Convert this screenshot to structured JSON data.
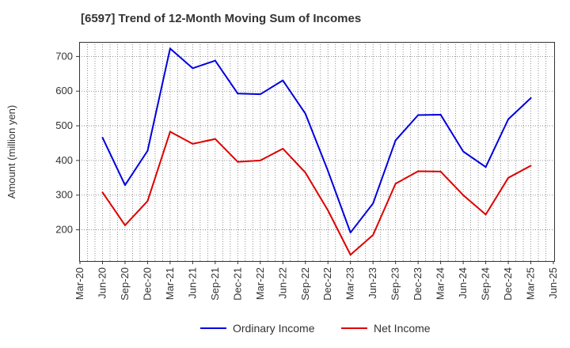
{
  "chart_data": {
    "type": "line",
    "title": "[6597]  Trend of 12-Month Moving Sum of Incomes",
    "xlabel": "",
    "ylabel": "Amount (million yen)",
    "ylim": [
      110,
      742
    ],
    "yticks": [
      200,
      300,
      400,
      500,
      600,
      700
    ],
    "x_tick_labels": [
      "Mar-20",
      "Jun-20",
      "Sep-20",
      "Dec-20",
      "Mar-21",
      "Jun-21",
      "Sep-21",
      "Dec-21",
      "Mar-22",
      "Jun-22",
      "Sep-22",
      "Dec-22",
      "Mar-23",
      "Jun-23",
      "Sep-23",
      "Dec-23",
      "Mar-24",
      "Jun-24",
      "Sep-24",
      "Dec-24",
      "Mar-25",
      "Jun-25"
    ],
    "grid": true,
    "legend_position": "bottom-center",
    "series": [
      {
        "name": "Ordinary Income",
        "color": "#0000dd",
        "x": [
          "Jun-20",
          "Sep-20",
          "Dec-20",
          "Mar-21",
          "Jun-21",
          "Sep-21",
          "Dec-21",
          "Mar-22",
          "Jun-22",
          "Sep-22",
          "Dec-22",
          "Mar-23",
          "Jun-23",
          "Sep-23",
          "Dec-23",
          "Mar-24",
          "Jun-24",
          "Sep-24",
          "Dec-24",
          "Mar-25"
        ],
        "values": [
          466,
          329,
          428,
          723,
          666,
          688,
          593,
          591,
          631,
          535,
          370,
          192,
          276,
          458,
          531,
          532,
          426,
          381,
          519,
          580
        ]
      },
      {
        "name": "Net Income",
        "color": "#dd0000",
        "x": [
          "Jun-20",
          "Sep-20",
          "Dec-20",
          "Mar-21",
          "Jun-21",
          "Sep-21",
          "Dec-21",
          "Mar-22",
          "Jun-22",
          "Sep-22",
          "Dec-22",
          "Mar-23",
          "Jun-23",
          "Sep-23",
          "Dec-23",
          "Mar-24",
          "Jun-24",
          "Sep-24",
          "Dec-24",
          "Mar-25"
        ],
        "values": [
          308,
          213,
          283,
          483,
          448,
          462,
          396,
          400,
          434,
          365,
          256,
          128,
          185,
          333,
          369,
          368,
          300,
          244,
          350,
          385
        ]
      }
    ]
  }
}
